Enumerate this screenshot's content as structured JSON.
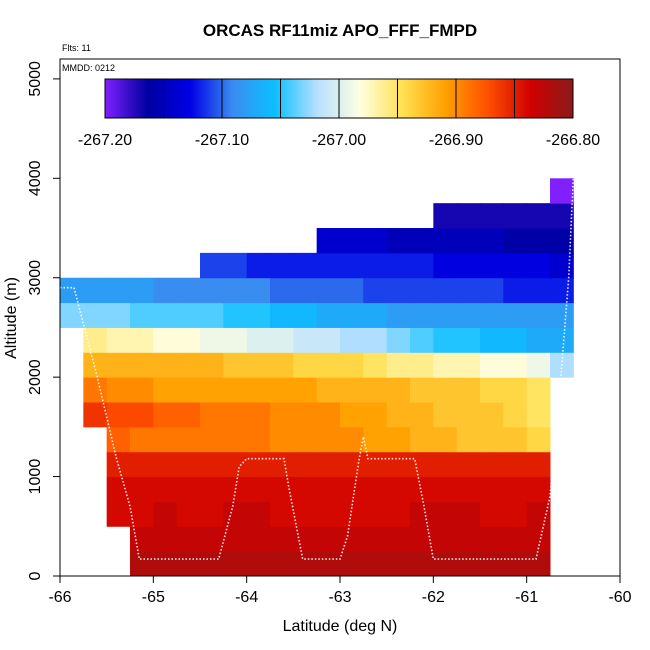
{
  "chart_data": {
    "type": "heatmap",
    "title": "ORCAS RF11miz APO_FFF_FMPD",
    "xlabel": "Latitude (deg N)",
    "ylabel": "Altitude (m)",
    "xlim": [
      -66,
      -60
    ],
    "ylim": [
      0,
      5200
    ],
    "x_ticks": [
      "-66",
      "-65",
      "-64",
      "-63",
      "-62",
      "-61",
      "-60"
    ],
    "y_ticks": [
      "0",
      "1000",
      "2000",
      "3000",
      "4000",
      "5000"
    ],
    "annotations": {
      "flights": "Flts: 11",
      "date": "MMDD: 0212"
    },
    "colorbar": {
      "min": -267.2,
      "max": -266.8,
      "tick_labels": [
        "-267.20",
        "-267.10",
        "-267.00",
        "-266.90",
        "-266.80"
      ],
      "colors": [
        "#8020ff",
        "#0000a0",
        "#0000e6",
        "#3a8cf0",
        "#0bc0ff",
        "#b8e0ff",
        "#ffffe0",
        "#ffe050",
        "#ffa000",
        "#ff5000",
        "#d00000",
        "#8b1a1a"
      ]
    },
    "cell_size": {
      "lat": 0.25,
      "alt": 250
    },
    "rows": [
      {
        "alt_bottom": 0,
        "lat_start": -65.25,
        "values": [
          -266.82,
          -266.82,
          -266.82,
          -266.82,
          -266.82,
          -266.82,
          -266.82,
          -266.82,
          -266.82,
          -266.82,
          -266.82,
          -266.82,
          -266.82,
          -266.82,
          -266.82,
          -266.82,
          -266.82,
          -266.82
        ]
      },
      {
        "alt_bottom": 250,
        "lat_start": -65.25,
        "values": [
          -266.83,
          -266.83,
          -266.83,
          -266.83,
          -266.83,
          -266.83,
          -266.83,
          -266.83,
          -266.83,
          -266.83,
          -266.83,
          -266.83,
          -266.83,
          -266.83,
          -266.83,
          -266.83,
          -266.83,
          -266.83
        ]
      },
      {
        "alt_bottom": 500,
        "lat_start": -65.5,
        "values": [
          -266.84,
          -266.84,
          -266.83,
          -266.84,
          -266.84,
          -266.83,
          -266.83,
          -266.84,
          -266.84,
          -266.84,
          -266.84,
          -266.84,
          -266.84,
          -266.83,
          -266.83,
          -266.83,
          -266.84,
          -266.84,
          -266.83
        ]
      },
      {
        "alt_bottom": 750,
        "lat_start": -65.5,
        "values": [
          -266.84,
          -266.84,
          -266.84,
          -266.84,
          -266.84,
          -266.84,
          -266.84,
          -266.84,
          -266.84,
          -266.84,
          -266.84,
          -266.84,
          -266.84,
          -266.84,
          -266.84,
          -266.84,
          -266.84,
          -266.84,
          -266.84
        ]
      },
      {
        "alt_bottom": 1000,
        "lat_start": -65.5,
        "values": [
          -266.85,
          -266.85,
          -266.85,
          -266.85,
          -266.85,
          -266.85,
          -266.85,
          -266.85,
          -266.85,
          -266.85,
          -266.85,
          -266.85,
          -266.85,
          -266.85,
          -266.85,
          -266.85,
          -266.85,
          -266.85,
          -266.85
        ]
      },
      {
        "alt_bottom": 1250,
        "lat_start": -65.5,
        "values": [
          -266.88,
          -266.89,
          -266.89,
          -266.89,
          -266.89,
          -266.89,
          -266.89,
          -266.9,
          -266.9,
          -266.9,
          -266.9,
          -266.91,
          -266.91,
          -266.92,
          -266.92,
          -266.93,
          -266.93,
          -266.93,
          -266.94
        ]
      },
      {
        "alt_bottom": 1500,
        "lat_start": -65.75,
        "values": [
          -266.86,
          -266.87,
          -266.87,
          -266.88,
          -266.88,
          -266.89,
          -266.89,
          -266.89,
          -266.9,
          -266.9,
          -266.9,
          -266.91,
          -266.91,
          -266.92,
          -266.92,
          -266.93,
          -266.93,
          -266.93,
          -266.94,
          -266.95
        ]
      },
      {
        "alt_bottom": 1750,
        "lat_start": -65.75,
        "values": [
          -266.89,
          -266.9,
          -266.9,
          -266.91,
          -266.91,
          -266.91,
          -266.91,
          -266.91,
          -266.91,
          -266.91,
          -266.92,
          -266.92,
          -266.92,
          -266.92,
          -266.93,
          -266.93,
          -266.93,
          -266.94,
          -266.94,
          -266.95
        ]
      },
      {
        "alt_bottom": 2000,
        "lat_start": -65.75,
        "values": [
          -266.92,
          -266.92,
          -266.92,
          -266.92,
          -266.92,
          -266.92,
          -266.93,
          -266.93,
          -266.93,
          -266.94,
          -266.94,
          -266.94,
          -266.95,
          -266.96,
          -266.96,
          -266.97,
          -266.97,
          -266.98,
          -266.98,
          -266.99,
          -267.02
        ]
      },
      {
        "alt_bottom": 2250,
        "lat_start": -65.75,
        "values": [
          -266.96,
          -266.97,
          -266.97,
          -266.98,
          -266.98,
          -266.99,
          -266.99,
          -267.0,
          -267.0,
          -267.01,
          -267.01,
          -267.02,
          -267.02,
          -267.03,
          -267.04,
          -267.05,
          -267.05,
          -267.06,
          -267.06,
          -267.07,
          -267.07
        ]
      },
      {
        "alt_bottom": 2500,
        "lat_start": -66.0,
        "values": [
          -267.03,
          -267.03,
          -267.03,
          -267.04,
          -267.04,
          -267.04,
          -267.04,
          -267.05,
          -267.05,
          -267.06,
          -267.06,
          -267.07,
          -267.07,
          -267.07,
          -267.08,
          -267.08,
          -267.08,
          -267.08,
          -267.08,
          -267.08,
          -267.08,
          -267.08
        ]
      },
      {
        "alt_bottom": 2750,
        "lat_start": -66.0,
        "values": [
          -267.08,
          -267.08,
          -267.08,
          -267.08,
          -267.09,
          -267.09,
          -267.09,
          -267.09,
          -267.09,
          -267.1,
          -267.1,
          -267.1,
          -267.1,
          -267.11,
          -267.11,
          -267.11,
          -267.11,
          -267.11,
          -267.11,
          -267.12,
          -267.12,
          -267.12
        ]
      },
      {
        "alt_bottom": 3000,
        "lat_start": -64.5,
        "values": [
          -267.11,
          -267.11,
          -267.12,
          -267.12,
          -267.12,
          -267.12,
          -267.12,
          -267.12,
          -267.12,
          -267.12,
          -267.13,
          -267.13,
          -267.13,
          -267.13,
          -267.13,
          -267.14
        ]
      },
      {
        "alt_bottom": 3250,
        "lat_start": -63.25,
        "values": [
          -267.14,
          -267.14,
          -267.14,
          -267.15,
          -267.15,
          -267.15,
          -267.15,
          -267.15,
          -267.16,
          -267.16,
          -267.16
        ]
      },
      {
        "alt_bottom": 3500,
        "lat_start": -62.0,
        "values": [
          -267.17,
          -267.17,
          -267.17,
          -267.17,
          -267.17,
          -267.17
        ]
      },
      {
        "alt_bottom": 3750,
        "lat_start": -60.75,
        "values": [
          -267.2
        ]
      }
    ],
    "flight_track": {
      "lat": [
        -66.0,
        -65.85,
        -65.6,
        -65.4,
        -65.25,
        -65.15,
        -64.8,
        -64.3,
        -64.15,
        -64.08,
        -64.0,
        -63.8,
        -63.6,
        -63.55,
        -63.4,
        -63.25,
        -63.0,
        -62.92,
        -62.8,
        -62.75,
        -62.7,
        -62.6,
        -62.4,
        -62.2,
        -62.1,
        -62.0,
        -61.6,
        -61.2,
        -60.9,
        -60.75,
        -60.65,
        -60.55,
        -60.5
      ],
      "alt": [
        2900,
        2900,
        2000,
        1200,
        700,
        170,
        170,
        170,
        700,
        1100,
        1180,
        1180,
        1180,
        900,
        170,
        170,
        170,
        400,
        1150,
        1400,
        1180,
        1180,
        1180,
        1180,
        700,
        170,
        170,
        170,
        170,
        800,
        1800,
        3000,
        4000
      ]
    }
  }
}
